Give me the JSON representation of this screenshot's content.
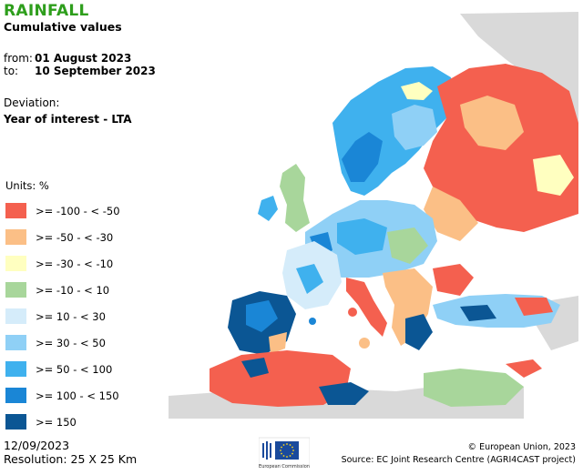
{
  "title": "RAINFALL",
  "subtitle": "Cumulative values",
  "period": {
    "from_label": "from:",
    "from_value": "01 August 2023",
    "to_label": "to:",
    "to_value": "10 September 2023"
  },
  "deviation": {
    "label": "Deviation:",
    "value": "Year of interest - LTA"
  },
  "legend": {
    "units": "Units: %",
    "items": [
      {
        "label": ">= -100 - < -50",
        "color": "#f4604f"
      },
      {
        "label": ">= -50 - < -30",
        "color": "#fbbf86"
      },
      {
        "label": ">= -30 - < -10",
        "color": "#ffffc0"
      },
      {
        "label": ">= -10 - < 10",
        "color": "#a8d69b"
      },
      {
        "label": ">= 10 - < 30",
        "color": "#d5ecfa"
      },
      {
        "label": ">= 30 - < 50",
        "color": "#8fd0f6"
      },
      {
        "label": ">= 50 - < 100",
        "color": "#3fb1ee"
      },
      {
        "label": ">= 100 - < 150",
        "color": "#1a86d6"
      },
      {
        "label": ">= 150",
        "color": "#0b5694"
      }
    ]
  },
  "footer": {
    "date": "12/09/2023",
    "resolution": "Resolution: 25 X 25 Km",
    "logo_text": "European Commission",
    "copyright": "© European Union, 2023",
    "source": "Source: EC Joint Research Centre (AGRI4CAST project)"
  },
  "map": {
    "no_data_color": "#d9d9d9",
    "sea_color": "#ffffff"
  }
}
